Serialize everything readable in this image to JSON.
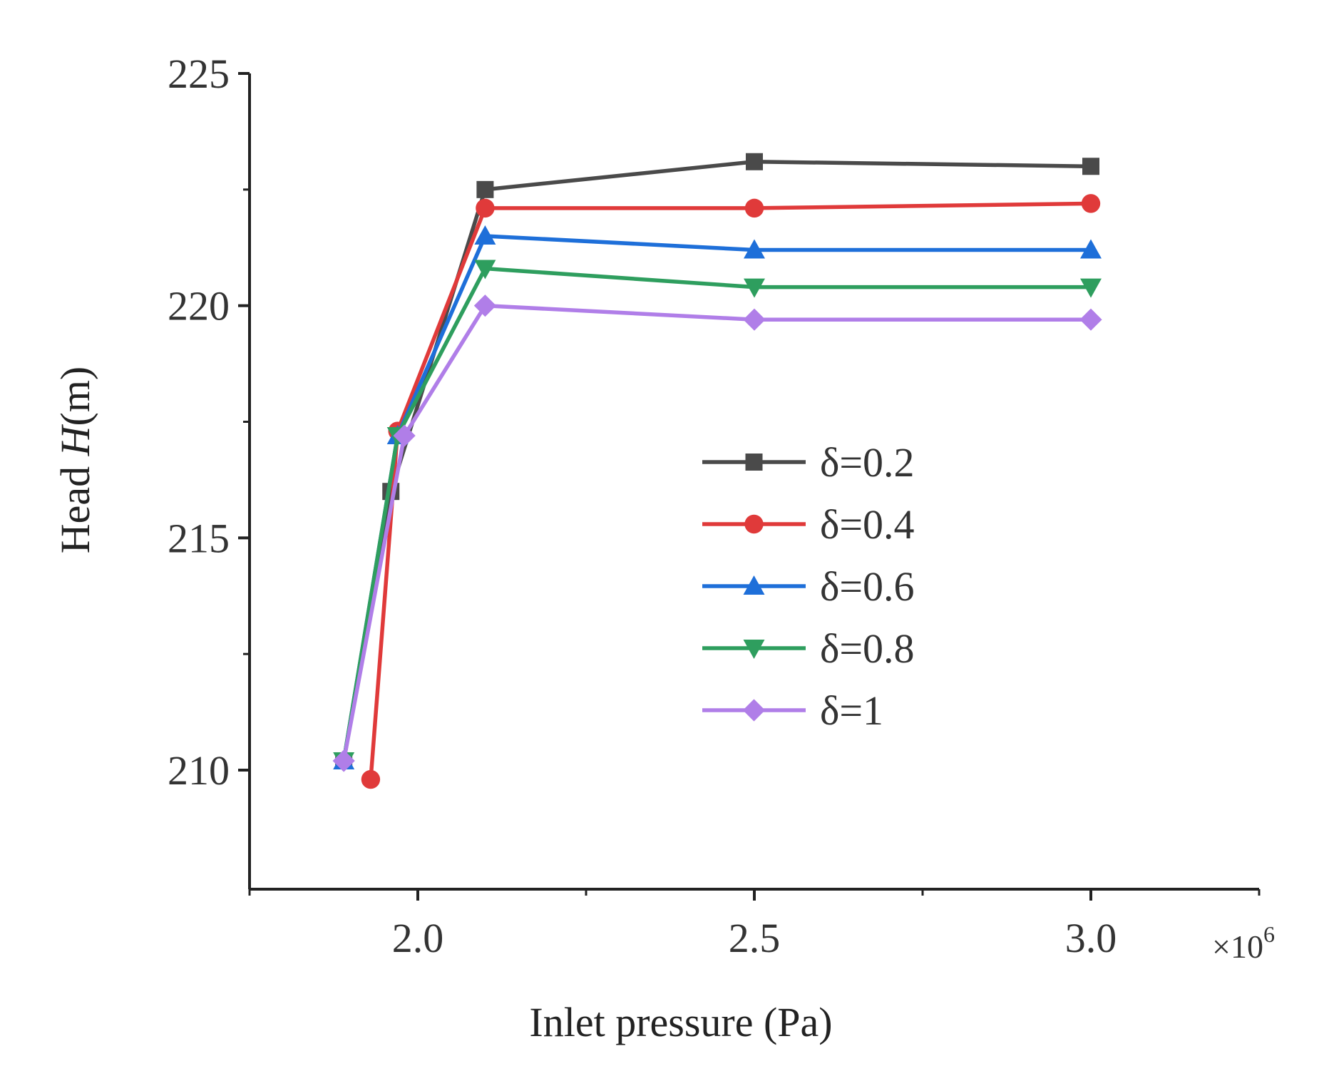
{
  "chart_data": {
    "type": "line",
    "title": "",
    "xlabel": "Inlet pressure (Pa)",
    "ylabel_prefix": "Head ",
    "ylabel_var": "H",
    "ylabel_suffix": "(m)",
    "x_multiplier": "×10",
    "x_multiplier_exp": "6",
    "xlim": [
      1.75,
      3.25
    ],
    "ylim": [
      207.5,
      225
    ],
    "x_ticks": [
      2.0,
      2.5,
      3.0
    ],
    "x_tick_labels": [
      "2.0",
      "2.5",
      "3.0"
    ],
    "x_minor_ticks": [
      1.75,
      2.25,
      2.75,
      3.25
    ],
    "y_ticks": [
      210,
      215,
      220,
      225
    ],
    "y_tick_labels": [
      "210",
      "215",
      "220",
      "225"
    ],
    "y_minor_ticks": [
      212.5,
      217.5,
      222.5
    ],
    "grid": false,
    "legend_position": "center-right",
    "series": [
      {
        "name": "δ=0.2",
        "color": "#4a4a4a",
        "marker": "square",
        "x": [
          1.89,
          1.96,
          2.1,
          2.5,
          3.0
        ],
        "y": [
          210.2,
          216.0,
          222.5,
          223.1,
          223.0
        ]
      },
      {
        "name": "δ=0.4",
        "color": "#e03a3a",
        "marker": "circle",
        "x": [
          1.93,
          1.97,
          2.1,
          2.5,
          3.0
        ],
        "y": [
          209.8,
          217.3,
          222.1,
          222.1,
          222.2
        ]
      },
      {
        "name": "δ=0.6",
        "color": "#1e6fd9",
        "marker": "triangle-up",
        "x": [
          1.89,
          1.97,
          2.1,
          2.5,
          3.0
        ],
        "y": [
          210.2,
          217.2,
          221.5,
          221.2,
          221.2
        ]
      },
      {
        "name": "δ=0.8",
        "color": "#2e9e5e",
        "marker": "triangle-down",
        "x": [
          1.89,
          1.97,
          2.1,
          2.5,
          3.0
        ],
        "y": [
          210.2,
          217.2,
          220.8,
          220.4,
          220.4
        ]
      },
      {
        "name": "δ=1",
        "color": "#b07ee8",
        "marker": "diamond",
        "x": [
          1.89,
          1.98,
          2.1,
          2.5,
          3.0
        ],
        "y": [
          210.2,
          217.2,
          220.0,
          219.7,
          219.7
        ]
      }
    ]
  }
}
